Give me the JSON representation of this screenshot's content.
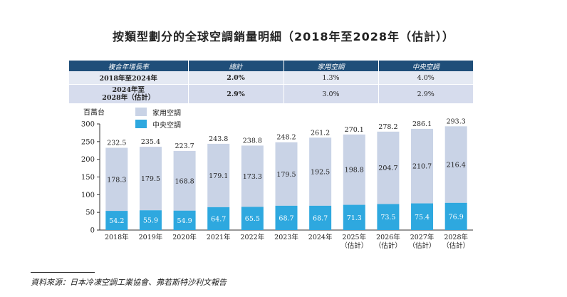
{
  "title": "按類型劃分的全球空調銷量明細（2018年至2028年（估計））",
  "cagr_table": {
    "headers": [
      "複合年增長率",
      "總計",
      "家用空調",
      "中央空調"
    ],
    "rows": [
      {
        "label": "2018年至2024年",
        "total": "2.0%",
        "residential": "1.3%",
        "central": "4.0%"
      },
      {
        "label_line1": "2024年至",
        "label_line2": "2028年（估計）",
        "total": "2.9%",
        "residential": "3.0%",
        "central": "2.9%"
      }
    ]
  },
  "colors": {
    "residential": "#c9d3e6",
    "central": "#2ea8df",
    "header": "#1f4e79"
  },
  "chart_data": {
    "type": "bar",
    "stacked": true,
    "unit_label": "百萬台",
    "categories": [
      "2018年",
      "2019年",
      "2020年",
      "2021年",
      "2022年",
      "2023年",
      "2024年",
      "2025年\n（估計）",
      "2026年\n（估計）",
      "2027年\n（估計）",
      "2028年\n（估計）"
    ],
    "series": [
      {
        "name": "中央空調",
        "values": [
          54.2,
          55.9,
          54.9,
          64.7,
          65.5,
          68.7,
          68.7,
          71.3,
          73.5,
          75.4,
          76.9
        ]
      },
      {
        "name": "家用空調",
        "values": [
          178.3,
          179.5,
          168.8,
          179.1,
          173.3,
          179.5,
          192.5,
          198.8,
          204.7,
          210.7,
          216.4
        ]
      }
    ],
    "totals": [
      232.5,
      235.4,
      223.7,
      243.8,
      238.8,
      248.2,
      261.2,
      270.1,
      278.2,
      286.1,
      293.3
    ],
    "ylim": [
      0,
      300
    ],
    "yticks": [
      0,
      50,
      100,
      150,
      200,
      250,
      300
    ],
    "legend": [
      "家用空調",
      "中央空調"
    ]
  },
  "source": "資料來源：日本冷凍空調工業協會、弗若斯特沙利文報告"
}
